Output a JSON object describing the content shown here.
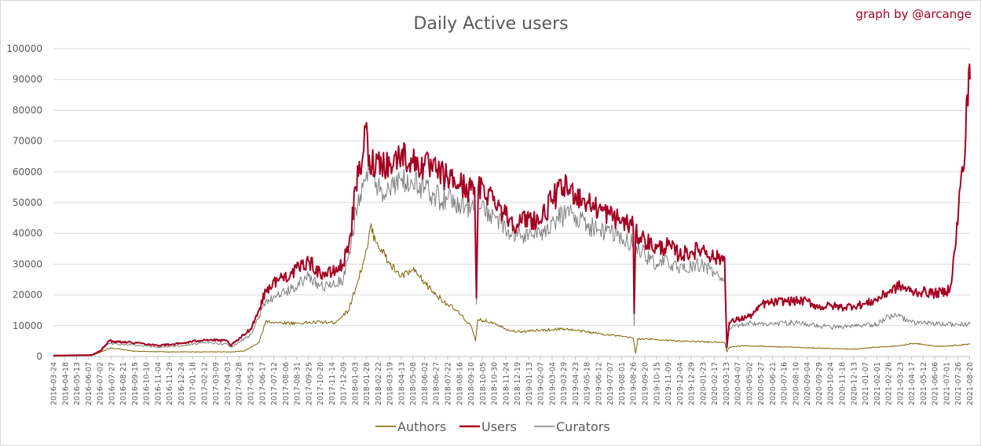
{
  "chart_data": {
    "type": "line",
    "title": "Daily Active users",
    "credit": "graph by @arcange",
    "xlabel": "",
    "ylabel": "",
    "ylim": [
      0,
      100000
    ],
    "yticks": [
      "0",
      "10000",
      "20000",
      "30000",
      "40000",
      "50000",
      "60000",
      "70000",
      "80000",
      "90000",
      "100000"
    ],
    "grid": true,
    "legend_position": "bottom",
    "x_start": "2016-03-24",
    "x_end": "2021-08-21",
    "xtick_labels": [
      "2016-03-24",
      "2016-04-18",
      "2016-05-13",
      "2016-06-07",
      "2016-07-02",
      "2016-07-27",
      "2016-08-21",
      "2016-09-15",
      "2016-10-10",
      "2016-11-04",
      "2016-11-29",
      "2016-12-24",
      "2017-01-18",
      "2017-02-12",
      "2017-03-09",
      "2017-04-03",
      "2017-04-28",
      "2017-05-23",
      "2017-06-17",
      "2017-07-12",
      "2017-08-06",
      "2017-08-31",
      "2017-09-25",
      "2017-10-20",
      "2017-11-14",
      "2017-12-09",
      "2018-01-03",
      "2018-01-28",
      "2018-02-22",
      "2018-03-19",
      "2018-04-13",
      "2018-05-08",
      "2018-06-02",
      "2018-06-27",
      "2018-07-22",
      "2018-08-16",
      "2018-09-10",
      "2018-10-05",
      "2018-10-30",
      "2018-11-24",
      "2018-12-19",
      "2019-01-13",
      "2019-02-07",
      "2019-03-04",
      "2019-03-29",
      "2019-04-23",
      "2019-05-18",
      "2019-06-12",
      "2019-07-07",
      "2019-08-01",
      "2019-08-26",
      "2019-09-20",
      "2019-10-15",
      "2019-11-09",
      "2019-12-04",
      "2019-12-29",
      "2020-01-23",
      "2020-02-17",
      "2020-03-13",
      "2020-04-07",
      "2020-05-02",
      "2020-05-27",
      "2020-06-21",
      "2020-07-16",
      "2020-08-10",
      "2020-09-04",
      "2020-09-29",
      "2020-10-24",
      "2020-11-18",
      "2020-12-13",
      "2021-01-07",
      "2021-02-01",
      "2021-02-26",
      "2021-03-23",
      "2021-04-17",
      "2021-05-12",
      "2021-06-06",
      "2021-07-01",
      "2021-07-26",
      "2021-08-20"
    ],
    "series": [
      {
        "name": "Authors",
        "color": "#7f6000",
        "points": [
          [
            "2016-03-24",
            100
          ],
          [
            "2016-06-15",
            300
          ],
          [
            "2016-07-05",
            1500
          ],
          [
            "2016-07-25",
            2800
          ],
          [
            "2016-09-15",
            1700
          ],
          [
            "2016-11-29",
            1500
          ],
          [
            "2017-02-12",
            1500
          ],
          [
            "2017-04-15",
            1500
          ],
          [
            "2017-05-10",
            1800
          ],
          [
            "2017-06-10",
            4500
          ],
          [
            "2017-06-25",
            11500
          ],
          [
            "2017-07-20",
            11000
          ],
          [
            "2017-08-31",
            10800
          ],
          [
            "2017-10-20",
            11200
          ],
          [
            "2017-11-20",
            11000
          ],
          [
            "2017-12-20",
            15000
          ],
          [
            "2018-01-10",
            25000
          ],
          [
            "2018-01-30",
            35000
          ],
          [
            "2018-02-05",
            42000
          ],
          [
            "2018-02-20",
            37000
          ],
          [
            "2018-03-19",
            30000
          ],
          [
            "2018-04-13",
            26000
          ],
          [
            "2018-05-08",
            28000
          ],
          [
            "2018-06-02",
            24000
          ],
          [
            "2018-06-27",
            20000
          ],
          [
            "2018-07-22",
            17000
          ],
          [
            "2018-08-16",
            14000
          ],
          [
            "2018-09-10",
            10000
          ],
          [
            "2018-09-20",
            5000
          ],
          [
            "2018-09-25",
            12000
          ],
          [
            "2018-10-30",
            11000
          ],
          [
            "2018-11-24",
            9000
          ],
          [
            "2018-12-19",
            8000
          ],
          [
            "2019-02-07",
            8500
          ],
          [
            "2019-03-29",
            9000
          ],
          [
            "2019-05-18",
            8000
          ],
          [
            "2019-07-07",
            7000
          ],
          [
            "2019-08-26",
            6000
          ],
          [
            "2019-08-31",
            1000
          ],
          [
            "2019-09-05",
            5800
          ],
          [
            "2019-10-15",
            5500
          ],
          [
            "2019-12-04",
            5000
          ],
          [
            "2020-01-23",
            4800
          ],
          [
            "2020-03-10",
            4500
          ],
          [
            "2020-03-15",
            1500
          ],
          [
            "2020-03-20",
            3000
          ],
          [
            "2020-04-20",
            3500
          ],
          [
            "2020-06-21",
            3200
          ],
          [
            "2020-08-10",
            3000
          ],
          [
            "2020-10-24",
            2600
          ],
          [
            "2020-12-13",
            2400
          ],
          [
            "2021-02-01",
            3000
          ],
          [
            "2021-03-23",
            3500
          ],
          [
            "2021-04-17",
            4200
          ],
          [
            "2021-05-12",
            4000
          ],
          [
            "2021-06-06",
            3300
          ],
          [
            "2021-07-01",
            3400
          ],
          [
            "2021-08-21",
            4000
          ]
        ]
      },
      {
        "name": "Users",
        "color": "#a50021",
        "points": [
          [
            "2016-03-24",
            300
          ],
          [
            "2016-06-15",
            500
          ],
          [
            "2016-07-05",
            2000
          ],
          [
            "2016-07-20",
            5000
          ],
          [
            "2016-08-21",
            4800
          ],
          [
            "2016-09-30",
            4300
          ],
          [
            "2016-11-04",
            3600
          ],
          [
            "2016-12-24",
            4200
          ],
          [
            "2017-02-12",
            5500
          ],
          [
            "2017-04-03",
            5000
          ],
          [
            "2017-04-10",
            3500
          ],
          [
            "2017-05-01",
            6000
          ],
          [
            "2017-05-23",
            9000
          ],
          [
            "2017-06-10",
            15000
          ],
          [
            "2017-06-25",
            21500
          ],
          [
            "2017-07-20",
            25000
          ],
          [
            "2017-08-20",
            27000
          ],
          [
            "2017-09-25",
            31000
          ],
          [
            "2017-10-20",
            27000
          ],
          [
            "2017-11-14",
            27000
          ],
          [
            "2017-12-09",
            30000
          ],
          [
            "2017-12-25",
            40000
          ],
          [
            "2018-01-05",
            55000
          ],
          [
            "2018-01-20",
            65000
          ],
          [
            "2018-01-28",
            76000
          ],
          [
            "2018-02-01",
            62000
          ],
          [
            "2018-02-22",
            64000
          ],
          [
            "2018-03-19",
            62000
          ],
          [
            "2018-04-13",
            66000
          ],
          [
            "2018-05-08",
            63000
          ],
          [
            "2018-06-02",
            62000
          ],
          [
            "2018-06-27",
            60000
          ],
          [
            "2018-07-22",
            58000
          ],
          [
            "2018-08-16",
            56000
          ],
          [
            "2018-09-10",
            54000
          ],
          [
            "2018-09-18",
            55000
          ],
          [
            "2018-09-22",
            19000
          ],
          [
            "2018-09-26",
            55000
          ],
          [
            "2018-10-30",
            52000
          ],
          [
            "2018-11-24",
            46000
          ],
          [
            "2018-12-19",
            43000
          ],
          [
            "2019-01-13",
            45000
          ],
          [
            "2019-02-07",
            44000
          ],
          [
            "2019-03-04",
            51000
          ],
          [
            "2019-03-29",
            55000
          ],
          [
            "2019-04-23",
            53000
          ],
          [
            "2019-05-18",
            50000
          ],
          [
            "2019-06-12",
            48000
          ],
          [
            "2019-07-07",
            46000
          ],
          [
            "2019-08-01",
            44000
          ],
          [
            "2019-08-26",
            42000
          ],
          [
            "2019-08-28",
            14000
          ],
          [
            "2019-08-31",
            40000
          ],
          [
            "2019-09-20",
            38000
          ],
          [
            "2019-10-15",
            35000
          ],
          [
            "2019-11-09",
            36000
          ],
          [
            "2019-12-04",
            33000
          ],
          [
            "2019-12-29",
            34000
          ],
          [
            "2020-01-23",
            35000
          ],
          [
            "2020-02-17",
            32000
          ],
          [
            "2020-03-10",
            32000
          ],
          [
            "2020-03-15",
            3000
          ],
          [
            "2020-03-20",
            11000
          ],
          [
            "2020-04-07",
            12000
          ],
          [
            "2020-05-02",
            13000
          ],
          [
            "2020-05-20",
            15000
          ],
          [
            "2020-05-27",
            17000
          ],
          [
            "2020-06-21",
            17500
          ],
          [
            "2020-07-16",
            18000
          ],
          [
            "2020-08-10",
            18000
          ],
          [
            "2020-09-04",
            18000
          ],
          [
            "2020-09-29",
            16000
          ],
          [
            "2020-10-24",
            16500
          ],
          [
            "2020-11-18",
            16000
          ],
          [
            "2020-12-13",
            16500
          ],
          [
            "2021-01-07",
            17000
          ],
          [
            "2021-02-01",
            18500
          ],
          [
            "2021-02-26",
            21000
          ],
          [
            "2021-03-23",
            23000
          ],
          [
            "2021-04-17",
            21000
          ],
          [
            "2021-05-12",
            21000
          ],
          [
            "2021-06-06",
            20500
          ],
          [
            "2021-07-01",
            21000
          ],
          [
            "2021-07-10",
            23000
          ],
          [
            "2021-07-20",
            35000
          ],
          [
            "2021-07-31",
            55000
          ],
          [
            "2021-08-10",
            65000
          ],
          [
            "2021-08-15",
            85000
          ],
          [
            "2021-08-20",
            95000
          ],
          [
            "2021-08-21",
            90000
          ]
        ]
      },
      {
        "name": "Curators",
        "color": "#7f7f7f",
        "points": [
          [
            "2016-03-24",
            200
          ],
          [
            "2016-06-15",
            400
          ],
          [
            "2016-07-05",
            1800
          ],
          [
            "2016-07-20",
            4200
          ],
          [
            "2016-08-21",
            4000
          ],
          [
            "2016-09-30",
            3500
          ],
          [
            "2016-11-04",
            3000
          ],
          [
            "2016-12-24",
            3500
          ],
          [
            "2017-02-12",
            4500
          ],
          [
            "2017-04-03",
            4000
          ],
          [
            "2017-04-10",
            3000
          ],
          [
            "2017-05-01",
            5000
          ],
          [
            "2017-05-23",
            7000
          ],
          [
            "2017-06-10",
            13000
          ],
          [
            "2017-06-25",
            18000
          ],
          [
            "2017-07-20",
            20000
          ],
          [
            "2017-08-20",
            22000
          ],
          [
            "2017-09-25",
            26000
          ],
          [
            "2017-10-20",
            23000
          ],
          [
            "2017-11-14",
            23000
          ],
          [
            "2017-12-09",
            25000
          ],
          [
            "2017-12-25",
            35000
          ],
          [
            "2018-01-05",
            48000
          ],
          [
            "2018-01-20",
            55000
          ],
          [
            "2018-01-28",
            60000
          ],
          [
            "2018-02-22",
            55000
          ],
          [
            "2018-03-19",
            54000
          ],
          [
            "2018-04-13",
            57000
          ],
          [
            "2018-05-08",
            56000
          ],
          [
            "2018-06-02",
            55000
          ],
          [
            "2018-06-27",
            52000
          ],
          [
            "2018-07-22",
            51000
          ],
          [
            "2018-08-16",
            50000
          ],
          [
            "2018-09-10",
            48000
          ],
          [
            "2018-09-18",
            48000
          ],
          [
            "2018-09-22",
            17000
          ],
          [
            "2018-09-26",
            48000
          ],
          [
            "2018-10-30",
            46000
          ],
          [
            "2018-11-24",
            41000
          ],
          [
            "2018-12-19",
            39000
          ],
          [
            "2019-01-13",
            40000
          ],
          [
            "2019-02-07",
            39000
          ],
          [
            "2019-03-04",
            44000
          ],
          [
            "2019-03-29",
            46000
          ],
          [
            "2019-04-23",
            46000
          ],
          [
            "2019-05-18",
            43000
          ],
          [
            "2019-06-12",
            41000
          ],
          [
            "2019-07-07",
            40000
          ],
          [
            "2019-08-01",
            38000
          ],
          [
            "2019-08-26",
            37000
          ],
          [
            "2019-08-28",
            10000
          ],
          [
            "2019-08-31",
            36000
          ],
          [
            "2019-09-20",
            33000
          ],
          [
            "2019-10-15",
            30000
          ],
          [
            "2019-11-09",
            31000
          ],
          [
            "2019-12-04",
            28000
          ],
          [
            "2019-12-29",
            29000
          ],
          [
            "2020-01-23",
            30000
          ],
          [
            "2020-02-17",
            27000
          ],
          [
            "2020-03-10",
            25000
          ],
          [
            "2020-03-15",
            2500
          ],
          [
            "2020-03-20",
            9000
          ],
          [
            "2020-04-07",
            10000
          ],
          [
            "2020-05-02",
            11000
          ],
          [
            "2020-05-27",
            10500
          ],
          [
            "2020-06-21",
            10500
          ],
          [
            "2020-07-16",
            11000
          ],
          [
            "2020-08-10",
            11000
          ],
          [
            "2020-09-04",
            10500
          ],
          [
            "2020-09-29",
            10000
          ],
          [
            "2020-10-24",
            9500
          ],
          [
            "2020-11-18",
            9500
          ],
          [
            "2020-12-13",
            9800
          ],
          [
            "2021-01-07",
            10000
          ],
          [
            "2021-02-01",
            10500
          ],
          [
            "2021-02-26",
            13000
          ],
          [
            "2021-03-23",
            13000
          ],
          [
            "2021-04-17",
            11000
          ],
          [
            "2021-05-12",
            11000
          ],
          [
            "2021-06-06",
            10500
          ],
          [
            "2021-07-01",
            10500
          ],
          [
            "2021-07-26",
            10500
          ],
          [
            "2021-08-21",
            10500
          ]
        ]
      }
    ]
  }
}
